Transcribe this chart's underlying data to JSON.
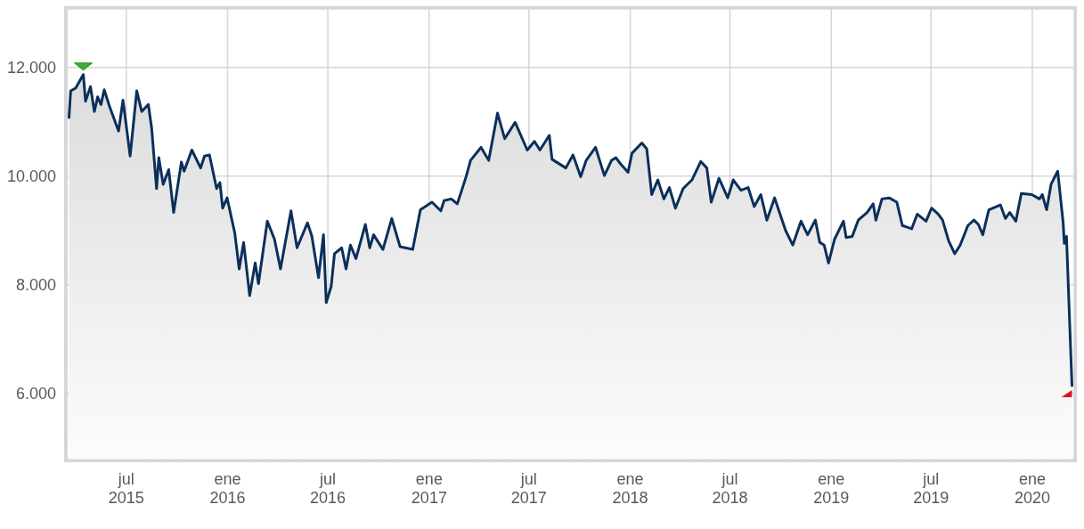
{
  "chart_data": {
    "type": "area",
    "color": "#0b2f5b",
    "x": [
      "2015-03-19",
      "2015-03-22",
      "2015-03-31",
      "2015-04-14",
      "2015-04-18",
      "2015-04-27",
      "2015-05-04",
      "2015-05-10",
      "2015-05-16",
      "2015-05-22",
      "2015-06-01",
      "2015-06-09",
      "2015-06-17",
      "2015-06-25",
      "2015-07-08",
      "2015-07-20",
      "2015-07-29",
      "2015-08-10",
      "2015-08-16",
      "2015-08-25",
      "2015-08-29",
      "2015-09-06",
      "2015-09-16",
      "2015-09-25",
      "2015-10-09",
      "2015-10-14",
      "2015-10-28",
      "2015-11-13",
      "2015-11-20",
      "2015-11-29",
      "2015-12-12",
      "2015-12-18",
      "2015-12-23",
      "2015-12-31",
      "2016-01-14",
      "2016-01-22",
      "2016-01-30",
      "2016-02-10",
      "2016-02-20",
      "2016-02-26",
      "2016-03-13",
      "2016-03-26",
      "2016-04-06",
      "2016-04-25",
      "2016-05-06",
      "2016-05-25",
      "2016-06-02",
      "2016-06-14",
      "2016-06-23",
      "2016-06-28",
      "2016-07-07",
      "2016-07-13",
      "2016-07-26",
      "2016-08-03",
      "2016-08-11",
      "2016-08-21",
      "2016-09-07",
      "2016-09-15",
      "2016-09-22",
      "2016-10-09",
      "2016-10-25",
      "2016-11-09",
      "2016-12-02",
      "2016-12-16",
      "2017-01-06",
      "2017-01-22",
      "2017-01-28",
      "2017-02-10",
      "2017-02-21",
      "2017-03-09",
      "2017-03-17",
      "2017-04-05",
      "2017-04-19",
      "2017-05-05",
      "2017-05-18",
      "2017-06-06",
      "2017-06-28",
      "2017-07-11",
      "2017-07-21",
      "2017-08-07",
      "2017-08-12",
      "2017-09-06",
      "2017-09-19",
      "2017-10-03",
      "2017-10-13",
      "2017-10-30",
      "2017-11-15",
      "2017-11-28",
      "2017-12-06",
      "2017-12-14",
      "2017-12-28",
      "2018-01-04",
      "2018-01-22",
      "2018-01-31",
      "2018-02-09",
      "2018-02-20",
      "2018-03-03",
      "2018-03-13",
      "2018-03-24",
      "2018-04-07",
      "2018-04-23",
      "2018-05-09",
      "2018-05-20",
      "2018-05-28",
      "2018-06-11",
      "2018-06-27",
      "2018-07-07",
      "2018-07-21",
      "2018-08-03",
      "2018-08-14",
      "2018-08-26",
      "2018-09-06",
      "2018-09-20",
      "2018-10-10",
      "2018-10-23",
      "2018-11-07",
      "2018-11-19",
      "2018-12-03",
      "2018-12-11",
      "2018-12-19",
      "2018-12-27",
      "2019-01-07",
      "2019-01-23",
      "2019-01-28",
      "2019-02-08",
      "2019-02-19",
      "2019-03-07",
      "2019-03-18",
      "2019-03-23",
      "2019-04-03",
      "2019-04-16",
      "2019-04-30",
      "2019-05-10",
      "2019-05-27",
      "2019-06-06",
      "2019-06-22",
      "2019-07-02",
      "2019-07-14",
      "2019-07-22",
      "2019-08-02",
      "2019-08-13",
      "2019-08-23",
      "2019-09-06",
      "2019-09-17",
      "2019-09-25",
      "2019-10-03",
      "2019-10-14",
      "2019-11-04",
      "2019-11-13",
      "2019-11-21",
      "2019-12-02",
      "2019-12-12",
      "2019-12-31",
      "2020-01-14",
      "2020-01-19",
      "2020-01-27",
      "2020-02-04",
      "2020-02-16",
      "2020-02-26",
      "2020-02-28",
      "2020-03-03",
      "2020-03-13"
    ],
    "values": [
      11080,
      11570,
      11620,
      11870,
      11380,
      11650,
      11190,
      11460,
      11320,
      11590,
      11270,
      11050,
      10830,
      11400,
      10370,
      11570,
      11190,
      11320,
      10890,
      9770,
      10340,
      9850,
      10120,
      9330,
      10260,
      10090,
      10480,
      10150,
      10370,
      10390,
      9770,
      9880,
      9410,
      9600,
      8950,
      8290,
      8780,
      7800,
      8400,
      8020,
      9170,
      8840,
      8290,
      9360,
      8680,
      9140,
      8890,
      8130,
      8920,
      7670,
      7970,
      8570,
      8680,
      8290,
      8730,
      8480,
      9110,
      8680,
      8920,
      8650,
      9220,
      8700,
      8650,
      9380,
      9520,
      9360,
      9550,
      9580,
      9490,
      9990,
      10290,
      10530,
      10290,
      11160,
      10690,
      10990,
      10480,
      10640,
      10480,
      10750,
      10310,
      10150,
      10390,
      9990,
      10290,
      10530,
      10010,
      10290,
      10340,
      10230,
      10070,
      10420,
      10610,
      10500,
      9660,
      9930,
      9580,
      9790,
      9410,
      9770,
      9930,
      10270,
      10150,
      9520,
      9960,
      9600,
      9930,
      9740,
      9790,
      9440,
      9660,
      9190,
      9600,
      9000,
      8730,
      9170,
      8920,
      9190,
      8780,
      8730,
      8400,
      8840,
      9170,
      8870,
      8890,
      9190,
      9330,
      9490,
      9190,
      9580,
      9600,
      9520,
      9090,
      9030,
      9300,
      9170,
      9410,
      9300,
      9190,
      8810,
      8570,
      8730,
      9090,
      9190,
      9110,
      8920,
      9380,
      9470,
      9220,
      9330,
      9170,
      9680,
      9660,
      9580,
      9660,
      9380,
      9850,
      10090,
      9140,
      8760,
      8890,
      6140
    ],
    "xlim": [
      "2015-03-15",
      "2020-03-17"
    ],
    "xticks": [
      {
        "value": "2015-07-01",
        "label": "jul 2015"
      },
      {
        "value": "2016-01-01",
        "label": "ene 2016"
      },
      {
        "value": "2016-07-01",
        "label": "jul 2016"
      },
      {
        "value": "2017-01-01",
        "label": "ene 2017"
      },
      {
        "value": "2017-07-01",
        "label": "jul 2017"
      },
      {
        "value": "2018-01-01",
        "label": "ene 2018"
      },
      {
        "value": "2018-07-01",
        "label": "jul 2018"
      },
      {
        "value": "2019-01-01",
        "label": "ene 2019"
      },
      {
        "value": "2019-07-01",
        "label": "jul 2019"
      },
      {
        "value": "2020-01-01",
        "label": "ene 2020"
      }
    ],
    "ylim": [
      4780,
      13080
    ],
    "yticks": [
      {
        "value": 6000,
        "label": "6.000"
      },
      {
        "value": 8000,
        "label": "8.000"
      },
      {
        "value": 10000,
        "label": "10.000"
      },
      {
        "value": 12000,
        "label": "12.000"
      }
    ],
    "grid": true
  }
}
